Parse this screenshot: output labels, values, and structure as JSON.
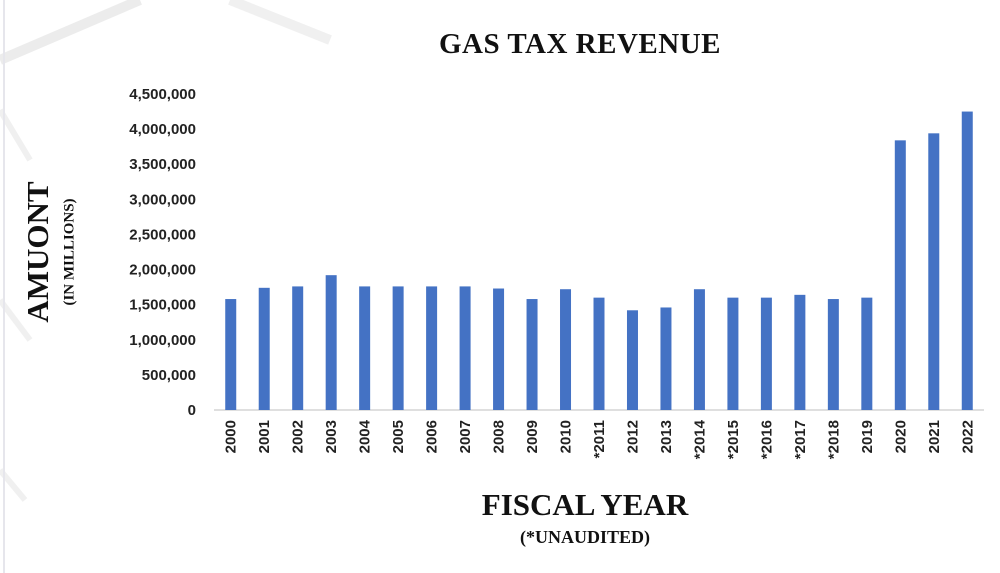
{
  "chart_data": {
    "type": "bar",
    "title": "GAS TAX REVENUE",
    "ylabel": "AMUONT",
    "ylabel_sub": "(IN MILLIONS)",
    "xlabel": "FISCAL YEAR",
    "xlabel_sub": "(*UNAUDITED)",
    "categories": [
      "2000",
      "2001",
      "2002",
      "2003",
      "2004",
      "2005",
      "2006",
      "2007",
      "2008",
      "2009",
      "2010",
      "*2011",
      "2012",
      "2013",
      "*2014",
      "*2015",
      "*2016",
      "*2017",
      "*2018",
      "2019",
      "2020",
      "2021",
      "2022"
    ],
    "values": [
      1580000,
      1740000,
      1760000,
      1920000,
      1760000,
      1760000,
      1760000,
      1760000,
      1730000,
      1580000,
      1720000,
      1600000,
      1420000,
      1460000,
      1720000,
      1600000,
      1600000,
      1640000,
      1580000,
      1600000,
      3840000,
      3940000,
      4250000
    ],
    "ylim": [
      0,
      4500000
    ],
    "yticks": [
      0,
      500000,
      1000000,
      1500000,
      2000000,
      2500000,
      3000000,
      3500000,
      4000000,
      4500000
    ],
    "ytick_labels": [
      "0",
      "500,000",
      "1,000,000",
      "1,500,000",
      "2,000,000",
      "2,500,000",
      "3,000,000",
      "3,500,000",
      "4,000,000",
      "4,500,000"
    ],
    "grid": false,
    "legend": "none",
    "bar_color": "#4472C4"
  }
}
